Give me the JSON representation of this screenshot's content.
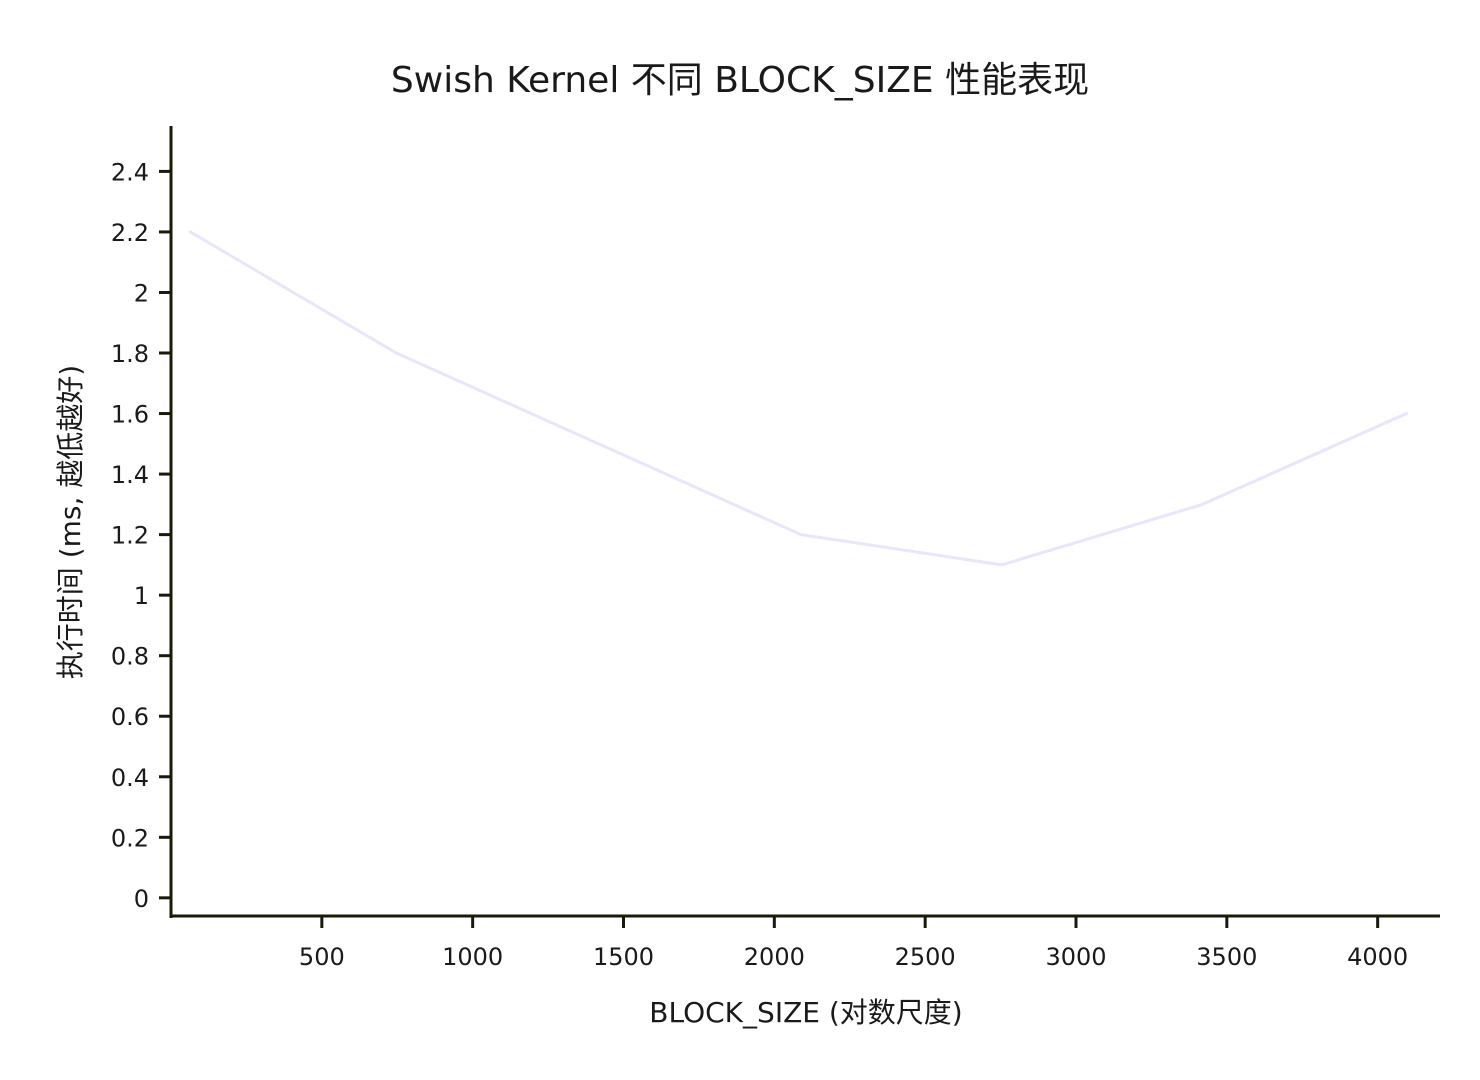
{
  "chart_data": {
    "type": "line",
    "title": "Swish Kernel 不同 BLOCK_SIZE 性能表现",
    "xlabel": "BLOCK_SIZE (对数尺度)",
    "ylabel": "执行时间 (ms, 越低越好)",
    "x_ticks": [
      500,
      1000,
      1500,
      2000,
      2500,
      3000,
      3500,
      4000
    ],
    "y_ticks": [
      0,
      0.2,
      0.4,
      0.6,
      0.8,
      1,
      1.2,
      1.4,
      1.6,
      1.8,
      2,
      2.2,
      2.4
    ],
    "xlim": [
      0,
      4200
    ],
    "ylim": [
      -0.06,
      2.55
    ],
    "grid": false,
    "series": [
      {
        "color": "#e8e6fb",
        "x": [
          64,
          747,
          2088,
          2754,
          3419,
          4096
        ],
        "y": [
          2.2,
          1.8,
          1.2,
          1.1,
          1.3,
          1.6
        ]
      }
    ]
  }
}
